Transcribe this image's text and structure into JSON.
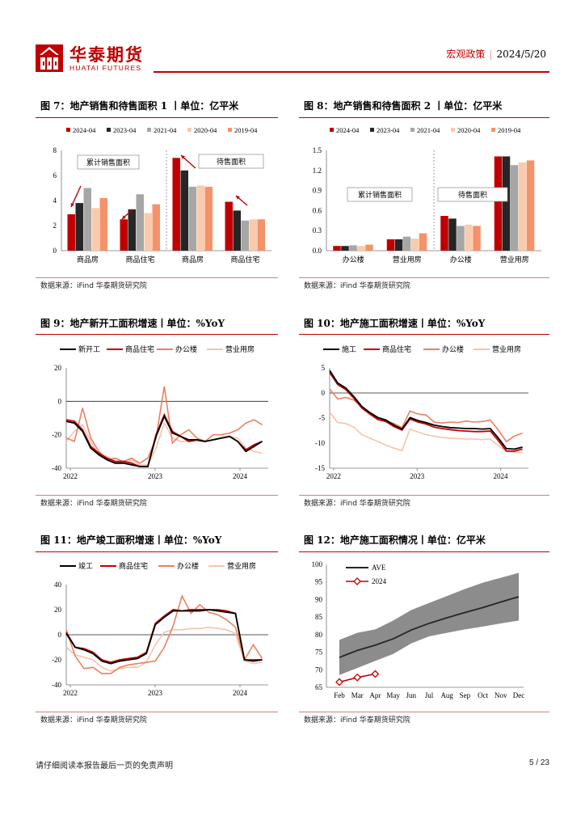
{
  "header": {
    "brand_cn": "华泰期货",
    "brand_en": "HUATAI FUTURES",
    "section": "宏观政策",
    "date": "2024/5/20"
  },
  "footer": {
    "disclaimer": "请仔细阅读本报告最后一页的免责声明",
    "page": "5 / 23"
  },
  "colors": {
    "c2024": "#c00000",
    "c2023": "#262626",
    "c2021": "#a6a6a6",
    "c2020": "#f8cbad",
    "c2019": "#f4926a",
    "accent": "#c00000"
  },
  "figures": [
    {
      "title": "图 7：地产销售和待售面积 1 丨单位：亿平米",
      "source": "数据来源：iFind   华泰期货研究院"
    },
    {
      "title": "图 8：地产销售和待售面积 2 丨单位：亿平米",
      "source": "数据来源：iFind   华泰期货研究院"
    },
    {
      "title": "图 9：地产新开工面积增速丨单位：%YoY",
      "source": "数据来源：iFind   华泰期货研究院"
    },
    {
      "title": "图 10：地产施工面积增速丨单位：%YoY",
      "source": "数据来源：iFind   华泰期货研究院"
    },
    {
      "title": "图 11：地产竣工面积增速丨单位：%YoY",
      "source": "数据来源：iFind   华泰期货研究院"
    },
    {
      "title": "图 12：地产施工面积情况丨单位：亿平米",
      "source": "数据来源：iFind   华泰期货研究院"
    }
  ],
  "chart_data": [
    {
      "type": "bar",
      "legend": [
        "2024-04",
        "2023-04",
        "2021-04",
        "2020-04",
        "2019-04"
      ],
      "categories": [
        "商品房",
        "商品住宅",
        "商品房",
        "商品住宅"
      ],
      "groups": [
        "累计销售面积",
        "待售面积"
      ],
      "series": [
        {
          "name": "2024-04",
          "values": [
            2.9,
            2.5,
            7.4,
            3.9
          ]
        },
        {
          "name": "2023-04",
          "values": [
            3.8,
            3.3,
            6.4,
            3.2
          ]
        },
        {
          "name": "2021-04",
          "values": [
            5.0,
            4.5,
            5.1,
            2.4
          ]
        },
        {
          "name": "2020-04",
          "values": [
            3.4,
            3.0,
            5.2,
            2.5
          ]
        },
        {
          "name": "2019-04",
          "values": [
            4.2,
            3.7,
            5.1,
            2.5
          ]
        }
      ],
      "ylim": [
        0,
        8
      ],
      "yticks": [
        "0",
        "2",
        "4",
        "6",
        "8"
      ]
    },
    {
      "type": "bar",
      "legend": [
        "2024-04",
        "2023-04",
        "2021-04",
        "2020-04",
        "2019-04"
      ],
      "categories": [
        "办公楼",
        "营业用房",
        "办公楼",
        "营业用房"
      ],
      "groups": [
        "累计销售面积",
        "待售面积"
      ],
      "series": [
        {
          "name": "2024-04",
          "values": [
            0.07,
            0.17,
            0.52,
            1.41
          ]
        },
        {
          "name": "2023-04",
          "values": [
            0.07,
            0.17,
            0.48,
            1.41
          ]
        },
        {
          "name": "2021-04",
          "values": [
            0.08,
            0.21,
            0.37,
            1.28
          ]
        },
        {
          "name": "2020-04",
          "values": [
            0.07,
            0.18,
            0.39,
            1.32
          ]
        },
        {
          "name": "2019-04",
          "values": [
            0.09,
            0.26,
            0.37,
            1.35
          ]
        }
      ],
      "ylim": [
        0,
        1.5
      ],
      "yticks": [
        "0.0",
        "0.3",
        "0.6",
        "0.9",
        "1.2",
        "1.5"
      ]
    },
    {
      "type": "line",
      "legend": [
        "新开工",
        "商品住宅",
        "办公楼",
        "营业用房"
      ],
      "xticks": [
        "2022",
        "2023",
        "2024"
      ],
      "ylim": [
        -40,
        20
      ],
      "yticks": [
        "-40",
        "-20",
        "0",
        "20"
      ],
      "series": [
        {
          "name": "新开工",
          "values": [
            -12,
            -13,
            -18,
            -28,
            -32,
            -35,
            -37,
            -37,
            -38,
            -39,
            -39,
            -21,
            -9,
            -19,
            -21,
            -23,
            -23,
            -24,
            -23,
            -22,
            -21,
            -24,
            -30,
            -27,
            -24
          ]
        },
        {
          "name": "商品住宅",
          "values": [
            -11,
            -12,
            -17,
            -27,
            -31,
            -34,
            -36,
            -36,
            -37,
            -39,
            -39,
            -20,
            -8,
            -18,
            -21,
            -24,
            -23,
            -24,
            -23,
            -22,
            -21,
            -24,
            -29,
            -26,
            -24
          ]
        },
        {
          "name": "办公楼",
          "values": [
            -22,
            -24,
            -4,
            -22,
            -30,
            -35,
            -34,
            -36,
            -34,
            -37,
            -34,
            -22,
            9,
            -25,
            -20,
            -17,
            -22,
            -24,
            -20,
            -20,
            -19,
            -17,
            -13,
            -11,
            -14
          ]
        },
        {
          "name": "营业用房",
          "values": [
            -24,
            -18,
            -14,
            -24,
            -32,
            -33,
            -36,
            -37,
            -35,
            -38,
            -38,
            -28,
            -13,
            -22,
            -24,
            -24,
            -24,
            -24,
            -23,
            -22,
            -21,
            -22,
            -28,
            -30,
            -31
          ]
        }
      ]
    },
    {
      "type": "line",
      "legend": [
        "施工",
        "商品住宅",
        "办公楼",
        "营业用房"
      ],
      "xticks": [
        "2022",
        "2023",
        "2024"
      ],
      "ylim": [
        -15,
        5
      ],
      "yticks": [
        "-15",
        "-10",
        "-5",
        "0",
        "5"
      ],
      "series": [
        {
          "name": "施工",
          "values": [
            4.5,
            2,
            1,
            -0.7,
            -2.7,
            -3.9,
            -4.9,
            -5.4,
            -6.4,
            -7.2,
            -4.9,
            -5.5,
            -5.9,
            -6.4,
            -6.7,
            -6.9,
            -7.0,
            -7.1,
            -7.1,
            -7.2,
            -7.1,
            -9.0,
            -11.1,
            -11.2,
            -10.8
          ]
        },
        {
          "name": "商品住宅",
          "values": [
            4.1,
            1.7,
            0.7,
            -1.0,
            -3.0,
            -4.2,
            -5.3,
            -5.7,
            -6.7,
            -7.4,
            -5.2,
            -5.8,
            -6.2,
            -6.8,
            -7.1,
            -7.3,
            -7.5,
            -7.6,
            -7.7,
            -7.7,
            -7.6,
            -9.5,
            -11.6,
            -11.6,
            -11.2
          ]
        },
        {
          "name": "办公楼",
          "values": [
            0.8,
            -1.2,
            -0.9,
            -1.4,
            -2.8,
            -4.2,
            -5.2,
            -5.6,
            -6.1,
            -6.9,
            -3.6,
            -4.2,
            -4.4,
            -5.8,
            -6.0,
            -5.8,
            -5.9,
            -5.6,
            -5.8,
            -5.7,
            -5.4,
            -7.4,
            -9.7,
            -8.6,
            -8.0
          ]
        },
        {
          "name": "营业用房",
          "values": [
            -3.8,
            -5.9,
            -6.1,
            -6.8,
            -8.3,
            -9.0,
            -9.7,
            -10.4,
            -11.0,
            -11.5,
            -7.2,
            -7.8,
            -8.3,
            -8.6,
            -8.9,
            -9.0,
            -9.1,
            -9.2,
            -9.2,
            -9.3,
            -9.2,
            -10.5,
            -11.6,
            -11.8,
            -11.9
          ]
        }
      ]
    },
    {
      "type": "line",
      "legend": [
        "竣工",
        "商品住宅",
        "办公楼",
        "营业用房"
      ],
      "xticks": [
        "2022",
        "2023",
        "2024"
      ],
      "ylim": [
        -40,
        40
      ],
      "yticks": [
        "-40",
        "-20",
        "0",
        "20",
        "40"
      ],
      "series": [
        {
          "name": "竣工",
          "values": [
            1,
            -10,
            -12,
            -15,
            -21,
            -23,
            -21,
            -20,
            -19,
            -15,
            8,
            14,
            19,
            19,
            19,
            19,
            20,
            19,
            18,
            17,
            -20,
            -21,
            -20
          ]
        },
        {
          "name": "商品住宅",
          "values": [
            2,
            -10,
            -11,
            -14,
            -20,
            -22,
            -20,
            -19,
            -18,
            -14,
            9,
            15,
            20,
            19,
            20,
            20,
            20,
            20,
            19,
            17,
            -20,
            -20,
            -20
          ]
        },
        {
          "name": "办公楼",
          "values": [
            4,
            -17,
            -27,
            -26,
            -31,
            -31,
            -26,
            -24,
            -23,
            -22,
            -21,
            -10,
            7,
            31,
            17,
            24,
            18,
            16,
            12,
            6,
            -20,
            -8,
            -19
          ]
        },
        {
          "name": "营业用房",
          "values": [
            -10,
            -16,
            -18,
            -20,
            -26,
            -29,
            -27,
            -26,
            -26,
            -22,
            -8,
            2,
            4,
            4,
            5,
            5,
            6,
            5,
            4,
            1,
            -21,
            -23,
            -22
          ]
        }
      ]
    },
    {
      "type": "area",
      "legend": [
        "AVE",
        "2024"
      ],
      "categories": [
        "Feb",
        "Mar",
        "Apr",
        "May",
        "Jun",
        "Jul",
        "Aug",
        "Sep",
        "Oct",
        "Nov",
        "Dec"
      ],
      "ylim": [
        65,
        100
      ],
      "yticks": [
        "65",
        "70",
        "75",
        "80",
        "85",
        "90",
        "95",
        "100"
      ],
      "band_low": [
        68.5,
        70.5,
        72.5,
        74.5,
        77.5,
        79.5,
        80.5,
        81.5,
        82.3,
        83.2,
        84.0
      ],
      "band_high": [
        78.5,
        80.5,
        81.5,
        84.0,
        87.0,
        89.0,
        91.0,
        93.0,
        94.8,
        96.2,
        97.6
      ],
      "ave": [
        73.5,
        75.5,
        77.0,
        78.8,
        81.3,
        83.2,
        84.8,
        86.3,
        87.7,
        89.3,
        90.8
      ],
      "y2024": [
        66.5,
        67.8,
        68.8
      ]
    }
  ]
}
